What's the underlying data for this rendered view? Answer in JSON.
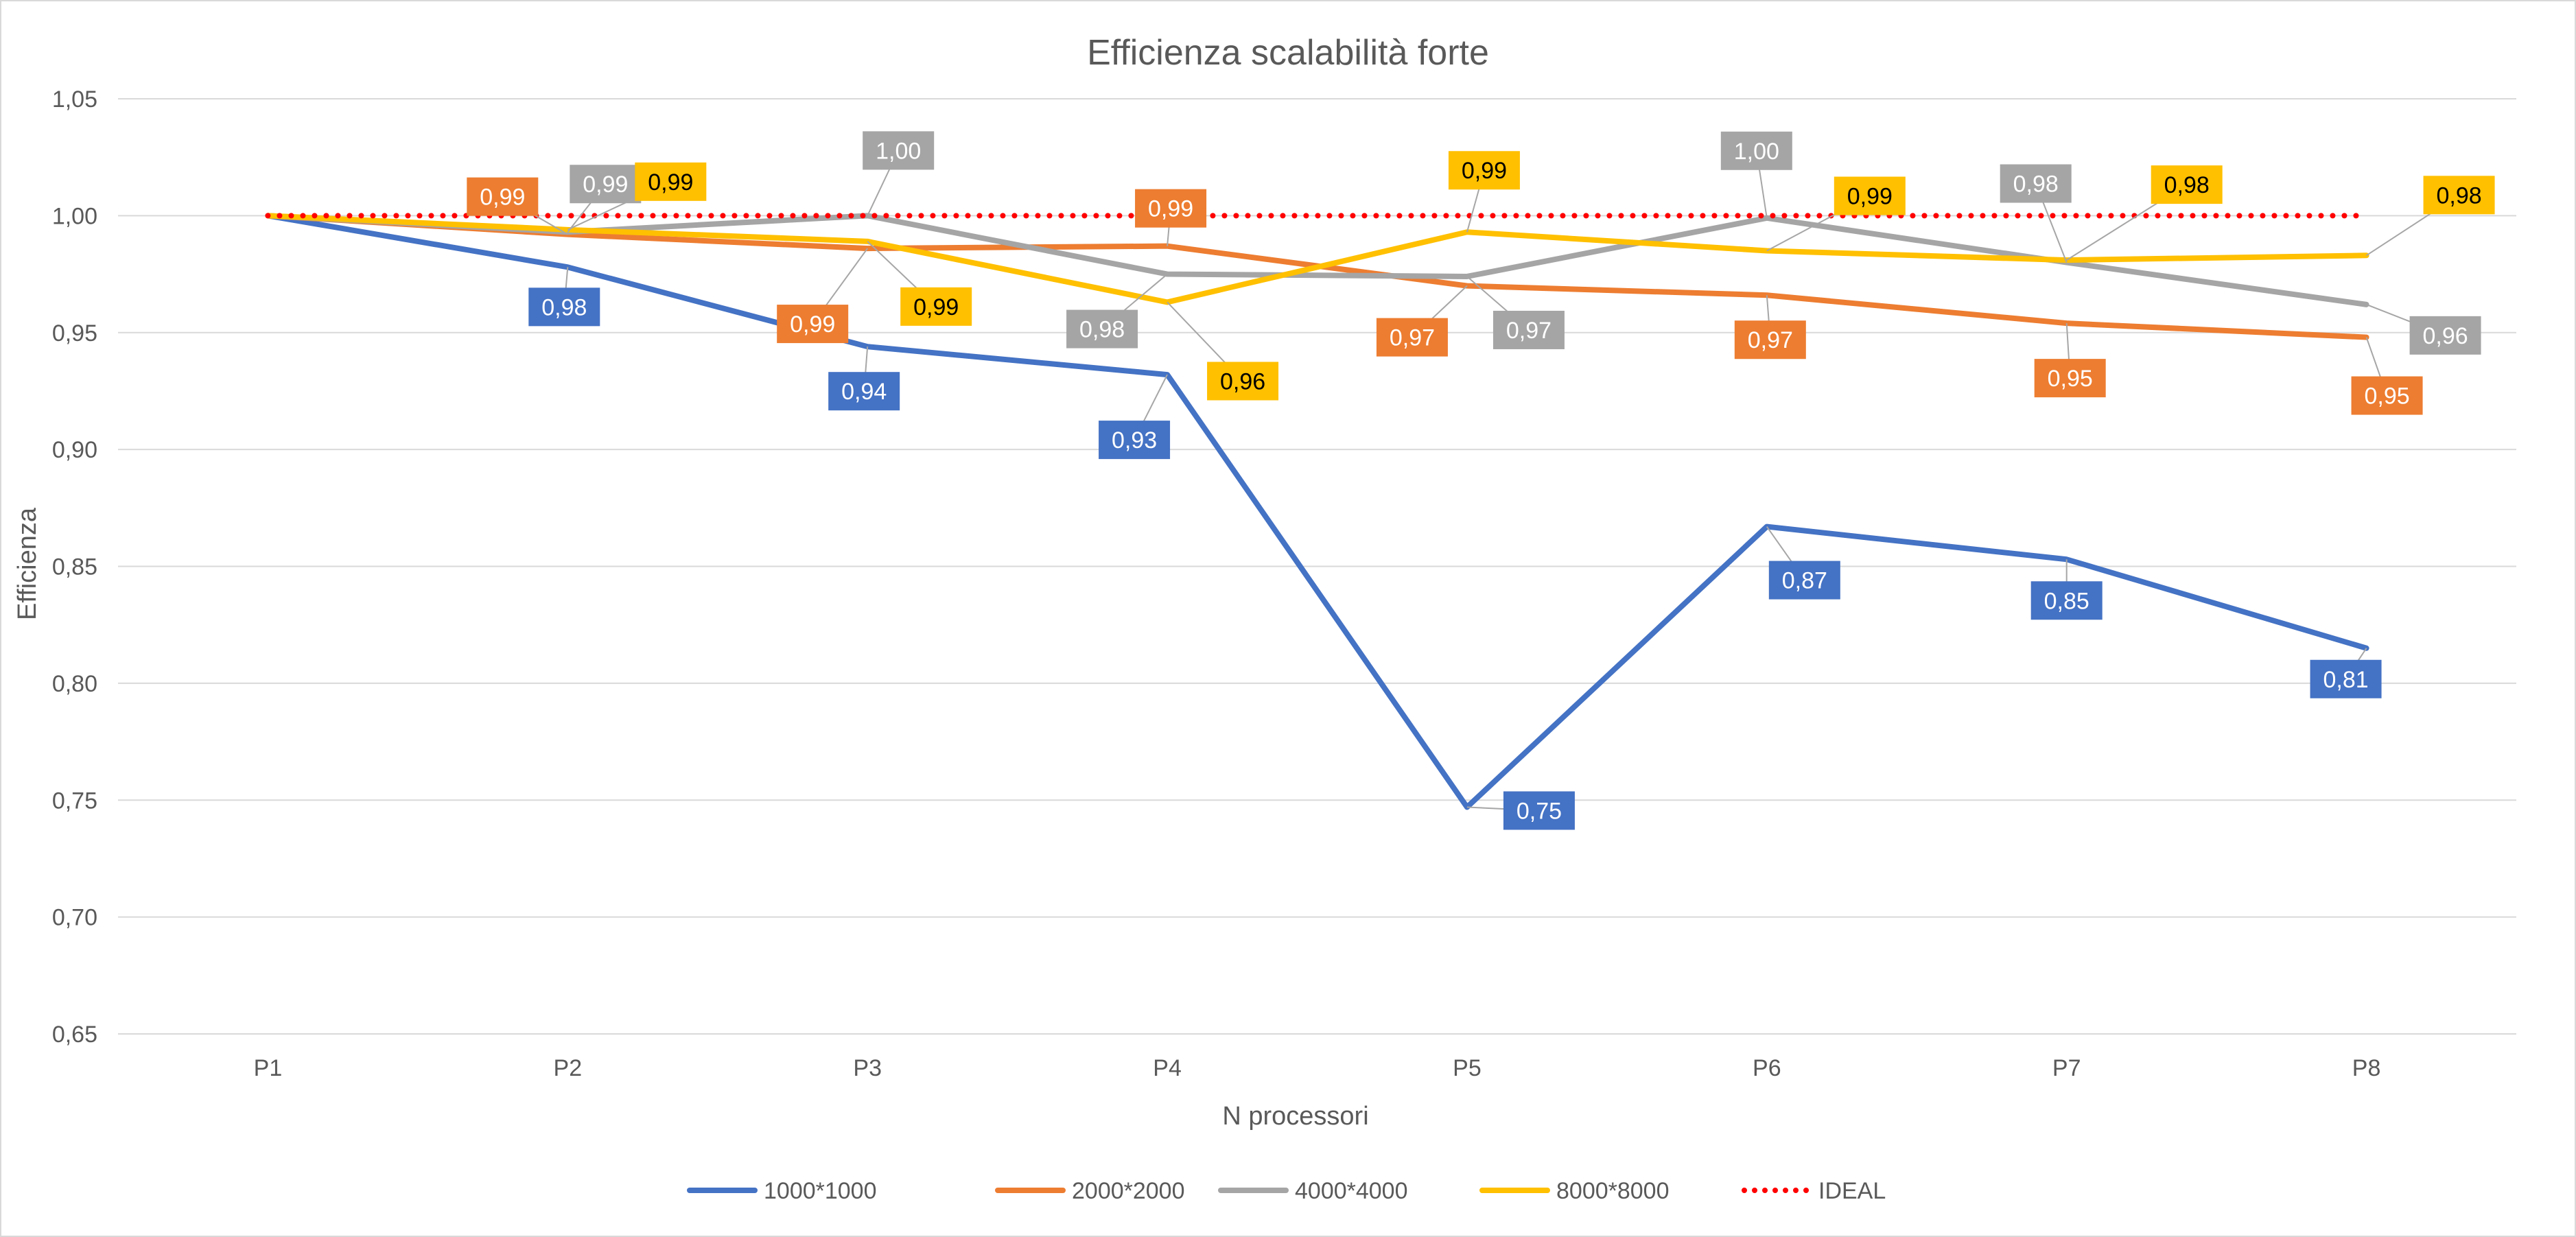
{
  "chart_data": {
    "type": "line",
    "title": "Efficienza scalabilità forte",
    "xlabel": "N processori",
    "ylabel": "Efficienza",
    "categories": [
      "P1",
      "P2",
      "P3",
      "P4",
      "P5",
      "P6",
      "P7",
      "P8"
    ],
    "ylim": [
      0.65,
      1.05
    ],
    "yticks": [
      "0,65",
      "0,70",
      "0,75",
      "0,80",
      "0,85",
      "0,90",
      "0,95",
      "1,00",
      "1,05"
    ],
    "grid": true,
    "legend_position": "bottom",
    "series": [
      {
        "name": "1000*1000",
        "color": "#4472c4",
        "values": [
          1.0,
          0.978,
          0.944,
          0.932,
          0.747,
          0.867,
          0.853,
          0.815
        ],
        "labels": [
          "",
          "0,98",
          "0,94",
          "0,93",
          "0,75",
          "0,87",
          "0,85",
          "0,81"
        ]
      },
      {
        "name": "2000*2000",
        "color": "#ed7d31",
        "values": [
          1.0,
          0.992,
          0.986,
          0.987,
          0.97,
          0.966,
          0.954,
          0.948
        ],
        "labels": [
          "",
          "0,99",
          "0,99",
          "0,99",
          "0,97",
          "0,97",
          "0,95",
          "0,95"
        ]
      },
      {
        "name": "4000*4000",
        "color": "#a5a5a5",
        "values": [
          1.0,
          0.993,
          1.0,
          0.975,
          0.974,
          0.999,
          0.98,
          0.962
        ],
        "labels": [
          "",
          "0,99",
          "1,00",
          "0,98",
          "0,97",
          "1,00",
          "0,98",
          "0,96"
        ]
      },
      {
        "name": "8000*8000",
        "color": "#ffc000",
        "values": [
          1.0,
          0.994,
          0.989,
          0.963,
          0.993,
          0.985,
          0.981,
          0.983
        ],
        "labels": [
          "",
          "0,99",
          "0,99",
          "0,96",
          "0,99",
          "0,99",
          "0,98",
          "0,98"
        ]
      },
      {
        "name": "IDEAL",
        "color": "#ff0000",
        "style": "dotted",
        "values": [
          1.0,
          1.0,
          1.0,
          1.0,
          1.0,
          1.0,
          1.0,
          1.0
        ],
        "labels": [
          "",
          "",
          "",
          "",
          "",
          "",
          "",
          ""
        ]
      }
    ]
  }
}
